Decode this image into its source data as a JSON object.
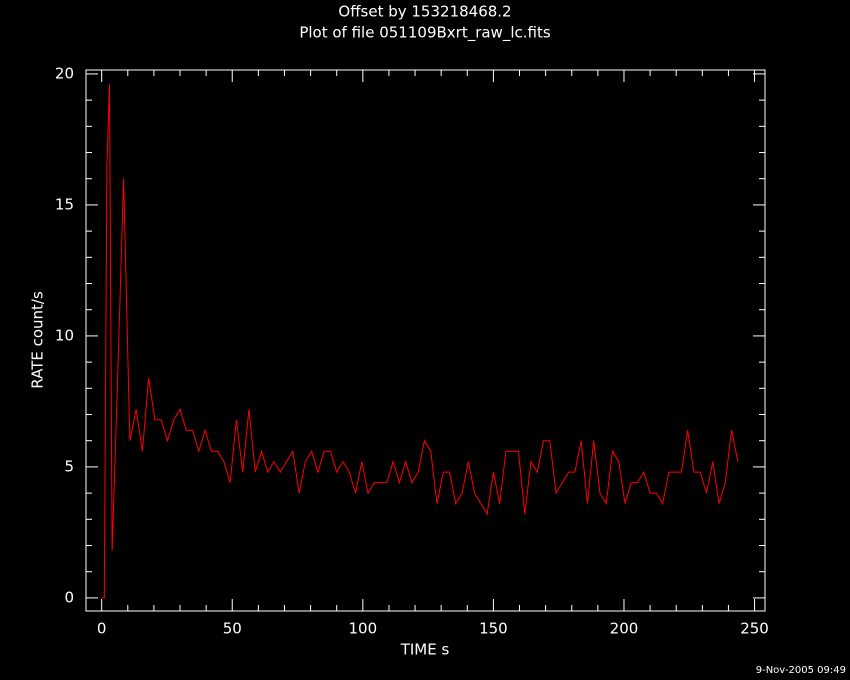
{
  "chart_data": {
    "type": "line",
    "title": "Offset by 153218468.2",
    "subtitle": "Plot of file 051109Bxrt_raw_lc.fits",
    "xlabel": "TIME  s",
    "ylabel": "RATE  count/s",
    "footer": "9-Nov-2005 09:49",
    "x": [
      0,
      1,
      2,
      3,
      4,
      6,
      8.4,
      10.8,
      13.2,
      15.6,
      18,
      20.4,
      22.8,
      25.2,
      27.6,
      30,
      32.4,
      34.8,
      37.2,
      39.6,
      42,
      44.4,
      46.8,
      49.2,
      51.6,
      54,
      56.4,
      58.8,
      61.2,
      63.6,
      66,
      68.4,
      70.8,
      73.2,
      75.6,
      78,
      80.4,
      82.8,
      85.2,
      87.6,
      90,
      92.4,
      94.8,
      97.2,
      99.6,
      102,
      104.4,
      106.8,
      109.2,
      111.6,
      114,
      116.4,
      118.8,
      121.2,
      123.6,
      126,
      128.4,
      130.8,
      133.2,
      135.6,
      138,
      140.4,
      142.8,
      145.2,
      147.6,
      150,
      152.4,
      154.8,
      157.2,
      159.6,
      162,
      164.4,
      166.8,
      169.2,
      171.6,
      174,
      176.4,
      178.8,
      181.2,
      183.6,
      186,
      188.4,
      190.8,
      193.2,
      195.6,
      198,
      200.4,
      202.8,
      205.2,
      207.6,
      210,
      212.4,
      214.8,
      217.2,
      219.6,
      222,
      224.4,
      226.8,
      229.2,
      231.6,
      234,
      236.4,
      238.8,
      241.2,
      243.6
    ],
    "series": [
      {
        "name": "RATE",
        "color": "#ff0000",
        "values": [
          0,
          0,
          16.5,
          19.6,
          1.8,
          8,
          16,
          6,
          7.2,
          5.6,
          8.4,
          6.8,
          6.8,
          6,
          6.8,
          7.2,
          6.4,
          6.4,
          5.6,
          6.4,
          5.6,
          5.6,
          5.2,
          4.4,
          6.8,
          4.8,
          7.2,
          4.8,
          5.6,
          4.8,
          5.2,
          4.8,
          5.2,
          5.6,
          4,
          5.2,
          5.6,
          4.8,
          5.6,
          5.6,
          4.8,
          5.2,
          4.8,
          4,
          5.2,
          4,
          4.4,
          4.4,
          4.4,
          5.2,
          4.4,
          5.2,
          4.4,
          4.8,
          6,
          5.6,
          3.6,
          4.8,
          4.8,
          3.6,
          4,
          5.2,
          4,
          3.6,
          3.2,
          4.8,
          3.6,
          5.6,
          5.6,
          5.6,
          3.2,
          5.2,
          4.8,
          6,
          6,
          4,
          4.4,
          4.8,
          4.8,
          6,
          3.6,
          6,
          4,
          3.6,
          5.6,
          5.2,
          3.6,
          4.4,
          4.4,
          4.8,
          4,
          4,
          3.6,
          4.8,
          4.8,
          4.8,
          6.4,
          4.8,
          4.8,
          4,
          5.2,
          3.6,
          4.4,
          6.4,
          5.2
        ]
      }
    ],
    "xlim": [
      -6,
      254
    ],
    "ylim": [
      -0.5,
      20.15
    ],
    "xticks": [
      0,
      50,
      100,
      150,
      200,
      250
    ],
    "yticks": [
      0,
      5,
      10,
      15,
      20
    ],
    "xminorticks": [
      10,
      20,
      30,
      40,
      60,
      70,
      80,
      90,
      110,
      120,
      130,
      140,
      160,
      170,
      180,
      190,
      210,
      220,
      230,
      240
    ],
    "yminorticks": [
      1,
      2,
      3,
      4,
      6,
      7,
      8,
      9,
      11,
      12,
      13,
      14,
      16,
      17,
      18,
      19
    ],
    "background": "#000000",
    "axis_color": "#ffffff"
  }
}
